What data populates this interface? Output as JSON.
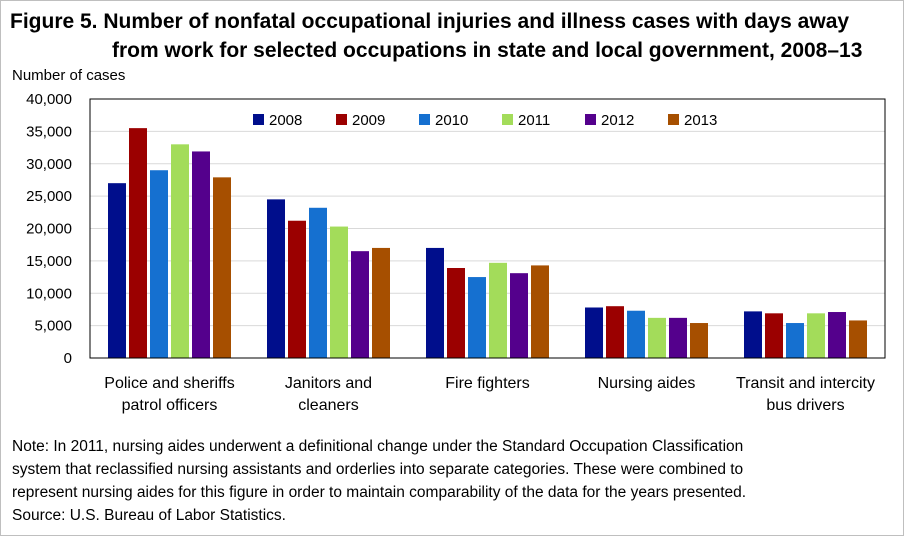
{
  "title": {
    "line1": "Figure 5. Number of nonfatal occupational injuries and illness cases with days away",
    "line2": "from work for selected occupations in state and local government, 2008–13"
  },
  "notes": {
    "line1": "Note: In 2011, nursing aides underwent a definitional change under the Standard Occupation Classification",
    "line2": "system that reclassified nursing assistants and orderlies into separate categories. These were combined to",
    "line3": "represent nursing aides for this figure in order to maintain comparability of the data for the years presented.",
    "source": "Source: U.S. Bureau of Labor Statistics."
  },
  "chart_data": {
    "type": "bar",
    "ylabel": "Number of cases",
    "ylim": [
      0,
      40000
    ],
    "yticks": [
      0,
      5000,
      10000,
      15000,
      20000,
      25000,
      30000,
      35000,
      40000
    ],
    "ytick_labels": [
      "0",
      "5,000",
      "10,000",
      "15,000",
      "20,000",
      "25,000",
      "30,000",
      "35,000",
      "40,000"
    ],
    "grid": true,
    "legend_position": "top",
    "categories": [
      {
        "line1": "Police and sheriffs",
        "line2": "patrol officers"
      },
      {
        "line1": "Janitors and",
        "line2": "cleaners"
      },
      {
        "line1": "Fire fighters",
        "line2": ""
      },
      {
        "line1": "Nursing aides",
        "line2": ""
      },
      {
        "line1": "Transit and intercity",
        "line2": "bus drivers"
      }
    ],
    "series": [
      {
        "name": "2008",
        "color": "#000e8c",
        "values": [
          27000,
          24500,
          17000,
          7800,
          7200
        ]
      },
      {
        "name": "2009",
        "color": "#9b0000",
        "values": [
          35500,
          21200,
          13900,
          8000,
          6900
        ]
      },
      {
        "name": "2010",
        "color": "#1570d0",
        "values": [
          29000,
          23200,
          12500,
          7300,
          5400
        ]
      },
      {
        "name": "2011",
        "color": "#a3dc5a",
        "values": [
          33000,
          20300,
          14700,
          6200,
          6900
        ]
      },
      {
        "name": "2012",
        "color": "#54008c",
        "values": [
          31900,
          16500,
          13100,
          6200,
          7100
        ]
      },
      {
        "name": "2013",
        "color": "#a64f00",
        "values": [
          27900,
          17000,
          14300,
          5400,
          5800
        ]
      }
    ]
  }
}
